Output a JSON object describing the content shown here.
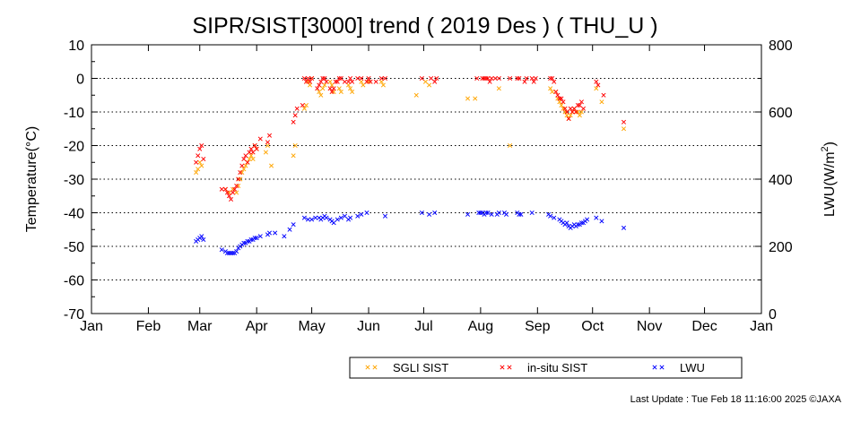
{
  "chart_data": {
    "type": "scatter",
    "title": "SIPR/SIST[3000] trend ( 2019 Des ) ( THU_U )",
    "ylabel": "Temperature(°C)",
    "y2label_main": "LWU(W/m",
    "y2label_sup": "2",
    "y2label_end": ")",
    "ylim": [
      -70,
      10
    ],
    "y2lim": [
      0,
      800
    ],
    "yticks": [
      10,
      0,
      -10,
      -20,
      -30,
      -40,
      -50,
      -60,
      -70
    ],
    "yticklabels": [
      "10",
      "0",
      "-10",
      "-20",
      "-30",
      "-40",
      "-50",
      "-60",
      "-70"
    ],
    "y2ticks": [
      800,
      600,
      400,
      200,
      0
    ],
    "y2ticklabels": [
      "800",
      "600",
      "400",
      "200",
      "0"
    ],
    "gridlines_y": [
      0,
      -10,
      -20,
      -30,
      -40,
      -50,
      -60
    ],
    "grid": "dotted horizontal",
    "xlim": [
      0,
      365
    ],
    "months": [
      {
        "label": "Jan",
        "day": 0
      },
      {
        "label": "Feb",
        "day": 31
      },
      {
        "label": "Mar",
        "day": 59
      },
      {
        "label": "Apr",
        "day": 90
      },
      {
        "label": "May",
        "day": 120
      },
      {
        "label": "Jun",
        "day": 151
      },
      {
        "label": "Jul",
        "day": 181
      },
      {
        "label": "Aug",
        "day": 212
      },
      {
        "label": "Sep",
        "day": 243
      },
      {
        "label": "Oct",
        "day": 273
      },
      {
        "label": "Nov",
        "day": 304
      },
      {
        "label": "Dec",
        "day": 334
      },
      {
        "label": "Jan",
        "day": 365
      }
    ],
    "legend_position": "bottom",
    "series": [
      {
        "name": "SGLI SIST",
        "color": "#ffa500",
        "axis": "left",
        "x": [
          57,
          58,
          59,
          60,
          73,
          75,
          77,
          79,
          80,
          81,
          82,
          83,
          84,
          85,
          86,
          87,
          88,
          89,
          90,
          95,
          96,
          98,
          110,
          111,
          116,
          117,
          118,
          119,
          120,
          124,
          125,
          126,
          127,
          130,
          131,
          132,
          135,
          136,
          140,
          141,
          142,
          147,
          148,
          151,
          158,
          159,
          177,
          182,
          184,
          205,
          209,
          222,
          228,
          250,
          251,
          253,
          254,
          255,
          256,
          257,
          258,
          259,
          260,
          261,
          262,
          263,
          264,
          265,
          266,
          267,
          275,
          278,
          290
        ],
        "y": [
          -28,
          -27,
          -25,
          -26,
          -33,
          -34,
          -33,
          -34,
          -32,
          -30,
          -28,
          -27,
          -26,
          -25,
          -24,
          -23,
          -24,
          -20,
          -21,
          -22,
          -20,
          -26,
          -23,
          -20,
          -9,
          -8,
          -1,
          -2,
          0,
          -4,
          -5,
          -3,
          -2,
          -1,
          -2,
          -4,
          -3,
          -4,
          -2,
          -3,
          -4,
          -1,
          -2,
          -1,
          -1,
          -2,
          -5,
          -1,
          -2,
          -6,
          -6,
          -3,
          -20,
          -3,
          -4,
          -4,
          -6,
          -7,
          -8,
          -9,
          -10,
          -11,
          -12,
          -11,
          -10,
          -9,
          -10,
          -10,
          -11,
          -10,
          -3,
          -7,
          -15
        ]
      },
      {
        "name": "in-situ SIST",
        "color": "#ff0000",
        "axis": "left",
        "x": [
          57,
          58,
          59,
          60,
          61,
          71,
          73,
          74,
          75,
          76,
          77,
          78,
          79,
          80,
          81,
          82,
          83,
          84,
          85,
          86,
          87,
          88,
          89,
          90,
          92,
          96,
          97,
          110,
          111,
          112,
          115,
          116,
          117,
          118,
          119,
          120,
          123,
          124,
          125,
          126,
          127,
          128,
          130,
          131,
          132,
          133,
          134,
          135,
          136,
          138,
          140,
          141,
          142,
          145,
          147,
          150,
          151,
          152,
          155,
          158,
          160,
          180,
          185,
          187,
          188,
          210,
          213,
          214,
          215,
          216,
          217,
          218,
          220,
          222,
          228,
          232,
          233,
          236,
          237,
          240,
          241,
          242,
          250,
          251,
          252,
          253,
          254,
          255,
          256,
          257,
          258,
          259,
          260,
          261,
          262,
          263,
          264,
          265,
          266,
          267,
          268,
          275,
          276,
          279,
          290
        ],
        "y": [
          -25,
          -23,
          -21,
          -20,
          -24,
          -33,
          -33,
          -34,
          -35,
          -36,
          -34,
          -33,
          -32,
          -30,
          -28,
          -26,
          -24,
          -23,
          -25,
          -22,
          -21,
          -22,
          -20,
          -21,
          -18,
          -19,
          -17,
          -13,
          -11,
          -9,
          -8,
          0,
          -1,
          0,
          -1,
          0,
          -3,
          -2,
          -1,
          0,
          0,
          -1,
          -3,
          -4,
          -3,
          -1,
          -1,
          0,
          0,
          -1,
          -1,
          0,
          -1,
          0,
          0,
          -1,
          0,
          -1,
          -1,
          0,
          0,
          0,
          0,
          -1,
          0,
          0,
          0,
          0,
          0,
          0,
          -1,
          0,
          0,
          0,
          0,
          0,
          0,
          -1,
          0,
          0,
          -1,
          0,
          0,
          0,
          -1,
          -4,
          -5,
          -6,
          -6,
          -7,
          -9,
          -10,
          -12,
          -9,
          -10,
          -9,
          -10,
          -8,
          -8,
          -7,
          -9,
          -1,
          -2,
          -5,
          -13
        ]
      },
      {
        "name": "LWU",
        "color": "#0000ff",
        "axis": "right",
        "x": [
          57,
          58,
          59,
          60,
          61,
          71,
          73,
          74,
          75,
          76,
          77,
          78,
          79,
          80,
          81,
          82,
          83,
          84,
          85,
          86,
          87,
          88,
          89,
          90,
          92,
          96,
          97,
          100,
          105,
          108,
          110,
          116,
          118,
          120,
          122,
          124,
          125,
          126,
          127,
          128,
          130,
          131,
          132,
          134,
          136,
          138,
          140,
          141,
          145,
          147,
          150,
          160,
          180,
          184,
          187,
          205,
          211,
          212,
          213,
          214,
          215,
          216,
          218,
          221,
          222,
          225,
          226,
          232,
          233,
          234,
          240,
          249,
          250,
          252,
          255,
          256,
          257,
          258,
          259,
          260,
          261,
          262,
          263,
          264,
          265,
          266,
          267,
          268,
          269,
          270,
          275,
          278,
          290
        ],
        "y": [
          215,
          220,
          225,
          230,
          220,
          190,
          185,
          180,
          180,
          180,
          180,
          180,
          185,
          195,
          200,
          205,
          210,
          210,
          215,
          215,
          220,
          220,
          225,
          225,
          230,
          235,
          240,
          240,
          230,
          250,
          265,
          285,
          280,
          280,
          285,
          285,
          280,
          285,
          290,
          285,
          280,
          275,
          270,
          280,
          285,
          290,
          280,
          285,
          290,
          295,
          300,
          290,
          300,
          295,
          300,
          295,
          300,
          300,
          300,
          295,
          300,
          300,
          295,
          295,
          300,
          300,
          295,
          300,
          295,
          295,
          300,
          295,
          290,
          285,
          280,
          275,
          270,
          265,
          270,
          260,
          255,
          260,
          265,
          260,
          265,
          265,
          270,
          270,
          275,
          280,
          285,
          275,
          255
        ]
      }
    ]
  },
  "legend": {
    "items": [
      {
        "label": "SGLI SIST",
        "color": "#ffa500"
      },
      {
        "label": "in-situ SIST",
        "color": "#ff0000"
      },
      {
        "label": "LWU",
        "color": "#0000ff"
      }
    ]
  },
  "footer": {
    "last_update": "Last Update : Tue Feb 18 11:16:00 2025  ©JAXA"
  }
}
